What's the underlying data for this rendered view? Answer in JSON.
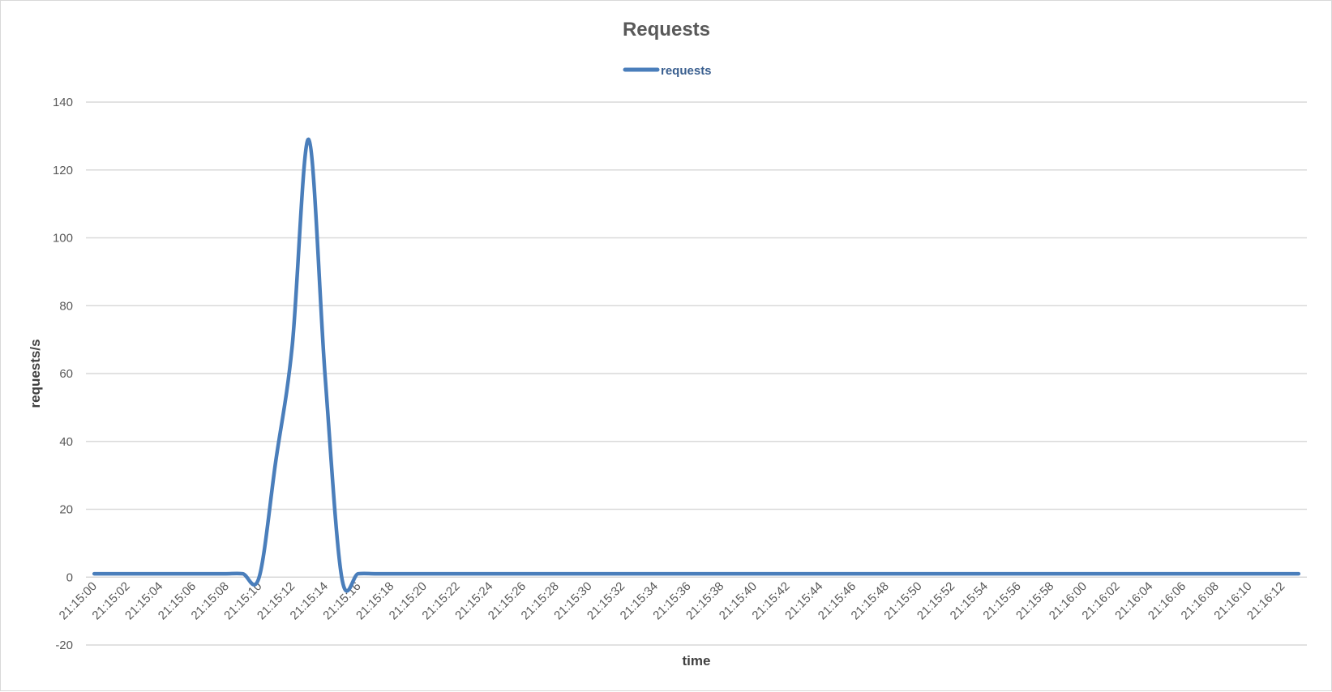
{
  "chart_data": {
    "type": "line",
    "title": "Requests",
    "xlabel": "time",
    "ylabel": "requests/s",
    "ylim": [
      -20,
      140
    ],
    "yticks": [
      -20,
      0,
      20,
      40,
      60,
      80,
      100,
      120,
      140
    ],
    "grid": true,
    "legend_position": "top-center",
    "line_color": "#4a7ebb",
    "x": [
      "21:15:00",
      "21:15:01",
      "21:15:02",
      "21:15:03",
      "21:15:04",
      "21:15:05",
      "21:15:06",
      "21:15:07",
      "21:15:08",
      "21:15:09",
      "21:15:10",
      "21:15:11",
      "21:15:12",
      "21:15:13",
      "21:15:14",
      "21:15:15",
      "21:15:16",
      "21:15:17",
      "21:15:18",
      "21:15:19",
      "21:15:20",
      "21:15:21",
      "21:15:22",
      "21:15:23",
      "21:15:24",
      "21:15:25",
      "21:15:26",
      "21:15:27",
      "21:15:28",
      "21:15:29",
      "21:15:30",
      "21:15:31",
      "21:15:32",
      "21:15:33",
      "21:15:34",
      "21:15:35",
      "21:15:36",
      "21:15:37",
      "21:15:38",
      "21:15:39",
      "21:15:40",
      "21:15:41",
      "21:15:42",
      "21:15:43",
      "21:15:44",
      "21:15:45",
      "21:15:46",
      "21:15:47",
      "21:15:48",
      "21:15:49",
      "21:15:50",
      "21:15:51",
      "21:15:52",
      "21:15:53",
      "21:15:54",
      "21:15:55",
      "21:15:56",
      "21:15:57",
      "21:15:58",
      "21:15:59",
      "21:16:00",
      "21:16:01",
      "21:16:02",
      "21:16:03",
      "21:16:04",
      "21:16:05",
      "21:16:06",
      "21:16:07",
      "21:16:08",
      "21:16:09",
      "21:16:10",
      "21:16:11",
      "21:16:12",
      "21:16:13"
    ],
    "x_tick_labels": [
      "21:15:00",
      "21:15:02",
      "21:15:04",
      "21:15:06",
      "21:15:08",
      "21:15:10",
      "21:15:12",
      "21:15:14",
      "21:15:16",
      "21:15:18",
      "21:15:20",
      "21:15:22",
      "21:15:24",
      "21:15:26",
      "21:15:28",
      "21:15:30",
      "21:15:32",
      "21:15:34",
      "21:15:36",
      "21:15:38",
      "21:15:40",
      "21:15:42",
      "21:15:44",
      "21:15:46",
      "21:15:48",
      "21:15:50",
      "21:15:52",
      "21:15:54",
      "21:15:56",
      "21:15:58",
      "21:16:00",
      "21:16:02",
      "21:16:04",
      "21:16:06",
      "21:16:08",
      "21:16:10",
      "21:16:12"
    ],
    "series": [
      {
        "name": "requests",
        "values": [
          1,
          1,
          1,
          1,
          1,
          1,
          1,
          1,
          1,
          1,
          0,
          34,
          68,
          129,
          59,
          0,
          1,
          1,
          1,
          1,
          1,
          1,
          1,
          1,
          1,
          1,
          1,
          1,
          1,
          1,
          1,
          1,
          1,
          1,
          1,
          1,
          1,
          1,
          1,
          1,
          1,
          1,
          1,
          1,
          1,
          1,
          1,
          1,
          1,
          1,
          1,
          1,
          1,
          1,
          1,
          1,
          1,
          1,
          1,
          1,
          1,
          1,
          1,
          1,
          1,
          1,
          1,
          1,
          1,
          1,
          1,
          1,
          1,
          1
        ]
      }
    ]
  }
}
